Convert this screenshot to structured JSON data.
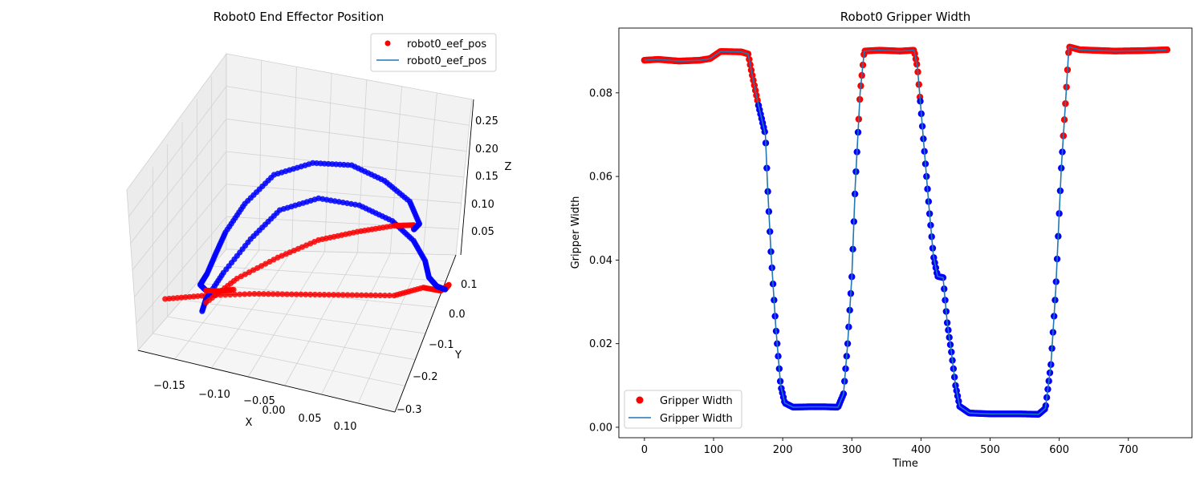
{
  "figure": {
    "left_title": "Robot0 End Effector Position",
    "right_title": "Robot0 Gripper Width"
  },
  "chart_data": [
    {
      "type": "scatter",
      "projection": "3d",
      "title": "Robot0 End Effector Position",
      "xlabel": "X",
      "ylabel": "Y",
      "zlabel": "Z",
      "x_ticks": [
        "−0.15",
        "−0.10",
        "−0.05",
        "0.00",
        "0.05",
        "0.10"
      ],
      "y_ticks": [
        "0.1",
        "0.0",
        "−0.1",
        "−0.2",
        "−0.3"
      ],
      "z_ticks": [
        "0.05",
        "0.10",
        "0.15",
        "0.20",
        "0.25"
      ],
      "xlim": [
        -0.19,
        0.14
      ],
      "ylim": [
        -0.32,
        0.14
      ],
      "zlim": [
        0.0,
        0.28
      ],
      "legend": {
        "position": "top-right",
        "entries": [
          "robot0_eef_pos",
          "robot0_eef_pos"
        ]
      },
      "grid": true,
      "colors": {
        "open": "#ff0000",
        "closed": "#0000ff",
        "line": "#1f77b4"
      },
      "segments": [
        {
          "state": "open",
          "points": [
            [
              -0.17,
              0.08,
              0.06
            ],
            [
              -0.13,
              0.03,
              0.06
            ],
            [
              -0.08,
              -0.02,
              0.06
            ],
            [
              -0.03,
              -0.06,
              0.06
            ],
            [
              0.02,
              -0.1,
              0.06
            ],
            [
              0.07,
              -0.14,
              0.06
            ],
            [
              0.1,
              -0.17,
              0.07
            ],
            [
              0.115,
              -0.2,
              0.06
            ],
            [
              0.118,
              -0.23,
              0.06
            ],
            [
              0.112,
              -0.235,
              0.05
            ]
          ]
        },
        {
          "state": "closed",
          "points": [
            [
              0.112,
              -0.235,
              0.05
            ],
            [
              0.1,
              -0.24,
              0.05
            ],
            [
              0.09,
              -0.24,
              0.06
            ],
            [
              0.09,
              -0.22,
              0.09
            ],
            [
              0.085,
              -0.18,
              0.13
            ],
            [
              0.07,
              -0.13,
              0.17
            ],
            [
              0.04,
              -0.08,
              0.2
            ],
            [
              0.0,
              -0.03,
              0.215
            ],
            [
              -0.04,
              0.01,
              0.2
            ],
            [
              -0.07,
              0.04,
              0.16
            ],
            [
              -0.1,
              0.06,
              0.11
            ],
            [
              -0.12,
              0.07,
              0.07
            ],
            [
              -0.125,
              0.072,
              0.05
            ]
          ]
        },
        {
          "state": "open",
          "points": [
            [
              -0.12,
              0.07,
              0.065
            ],
            [
              -0.09,
              0.03,
              0.095
            ],
            [
              -0.05,
              -0.02,
              0.12
            ],
            [
              -0.01,
              -0.07,
              0.14
            ],
            [
              0.03,
              -0.11,
              0.15
            ],
            [
              0.07,
              -0.14,
              0.16
            ],
            [
              0.09,
              -0.16,
              0.16
            ],
            [
              0.088,
              -0.17,
              0.15
            ]
          ]
        },
        {
          "state": "closed",
          "points": [
            [
              0.088,
              -0.17,
              0.15
            ],
            [
              0.095,
              -0.17,
              0.16
            ],
            [
              0.09,
              -0.14,
              0.2
            ],
            [
              0.07,
              -0.09,
              0.24
            ],
            [
              0.04,
              -0.04,
              0.27
            ],
            [
              0.0,
              0.0,
              0.275
            ],
            [
              -0.04,
              0.04,
              0.26
            ],
            [
              -0.07,
              0.07,
              0.22
            ],
            [
              -0.09,
              0.09,
              0.18
            ],
            [
              -0.1,
              0.1,
              0.15
            ],
            [
              -0.11,
              0.105,
              0.12
            ],
            [
              -0.12,
              0.1,
              0.1
            ],
            [
              -0.115,
              0.09,
              0.09
            ]
          ]
        },
        {
          "state": "open",
          "points": [
            [
              -0.115,
              0.09,
              0.09
            ],
            [
              -0.1,
              0.08,
              0.09
            ],
            [
              -0.085,
              0.06,
              0.09
            ]
          ]
        }
      ]
    },
    {
      "type": "scatter",
      "title": "Robot0 Gripper Width",
      "xlabel": "Time",
      "ylabel": "Gripper Width",
      "x_ticks": [
        0,
        100,
        200,
        300,
        400,
        500,
        600,
        700
      ],
      "y_ticks": [
        0.0,
        0.02,
        0.04,
        0.06,
        0.08
      ],
      "xlim": [
        -37,
        792
      ],
      "ylim": [
        -0.0025,
        0.0955
      ],
      "legend": {
        "position": "bottom-left",
        "entries": [
          "Gripper Width",
          "Gripper Width"
        ]
      },
      "grid": false,
      "colors": {
        "open": "#ff0000",
        "closed": "#0000ff",
        "line": "#1f77b4"
      },
      "line_series": {
        "name": "Gripper Width",
        "points": [
          [
            0,
            0.0878
          ],
          [
            20,
            0.088
          ],
          [
            50,
            0.0876
          ],
          [
            80,
            0.0878
          ],
          [
            95,
            0.0882
          ],
          [
            110,
            0.0899
          ],
          [
            140,
            0.0898
          ],
          [
            150,
            0.0893
          ],
          [
            155,
            0.085
          ],
          [
            165,
            0.077
          ],
          [
            175,
            0.07
          ],
          [
            178,
            0.058
          ],
          [
            183,
            0.042
          ],
          [
            190,
            0.024
          ],
          [
            197,
            0.01
          ],
          [
            203,
            0.0058
          ],
          [
            215,
            0.0048
          ],
          [
            240,
            0.0049
          ],
          [
            260,
            0.0049
          ],
          [
            280,
            0.0048
          ],
          [
            288,
            0.008
          ],
          [
            294,
            0.02
          ],
          [
            300,
            0.036
          ],
          [
            305,
            0.058
          ],
          [
            312,
            0.08
          ],
          [
            318,
            0.09
          ],
          [
            340,
            0.0902
          ],
          [
            370,
            0.09
          ],
          [
            390,
            0.0902
          ],
          [
            395,
            0.086
          ],
          [
            400,
            0.076
          ],
          [
            406,
            0.064
          ],
          [
            412,
            0.052
          ],
          [
            418,
            0.041
          ],
          [
            424,
            0.0361
          ],
          [
            432,
            0.0358
          ],
          [
            438,
            0.025
          ],
          [
            444,
            0.018
          ],
          [
            450,
            0.01
          ],
          [
            456,
            0.005
          ],
          [
            470,
            0.0034
          ],
          [
            500,
            0.0032
          ],
          [
            540,
            0.0032
          ],
          [
            570,
            0.0031
          ],
          [
            580,
            0.0045
          ],
          [
            588,
            0.015
          ],
          [
            595,
            0.033
          ],
          [
            603,
            0.062
          ],
          [
            610,
            0.08
          ],
          [
            614,
            0.091
          ],
          [
            630,
            0.0903
          ],
          [
            680,
            0.09
          ],
          [
            720,
            0.0901
          ],
          [
            755,
            0.0903
          ]
        ]
      },
      "scatter_series": [
        {
          "name": "Gripper Width",
          "state": "open",
          "t_range": [
            0,
            165
          ]
        },
        {
          "name": "Gripper Width",
          "state": "closed",
          "t_range": [
            165,
            310
          ]
        },
        {
          "name": "Gripper Width",
          "state": "open",
          "t_range": [
            310,
            399
          ]
        },
        {
          "name": "Gripper Width",
          "state": "closed",
          "t_range": [
            399,
            606
          ]
        },
        {
          "name": "Gripper Width",
          "state": "open",
          "t_range": [
            606,
            756
          ]
        }
      ]
    }
  ]
}
